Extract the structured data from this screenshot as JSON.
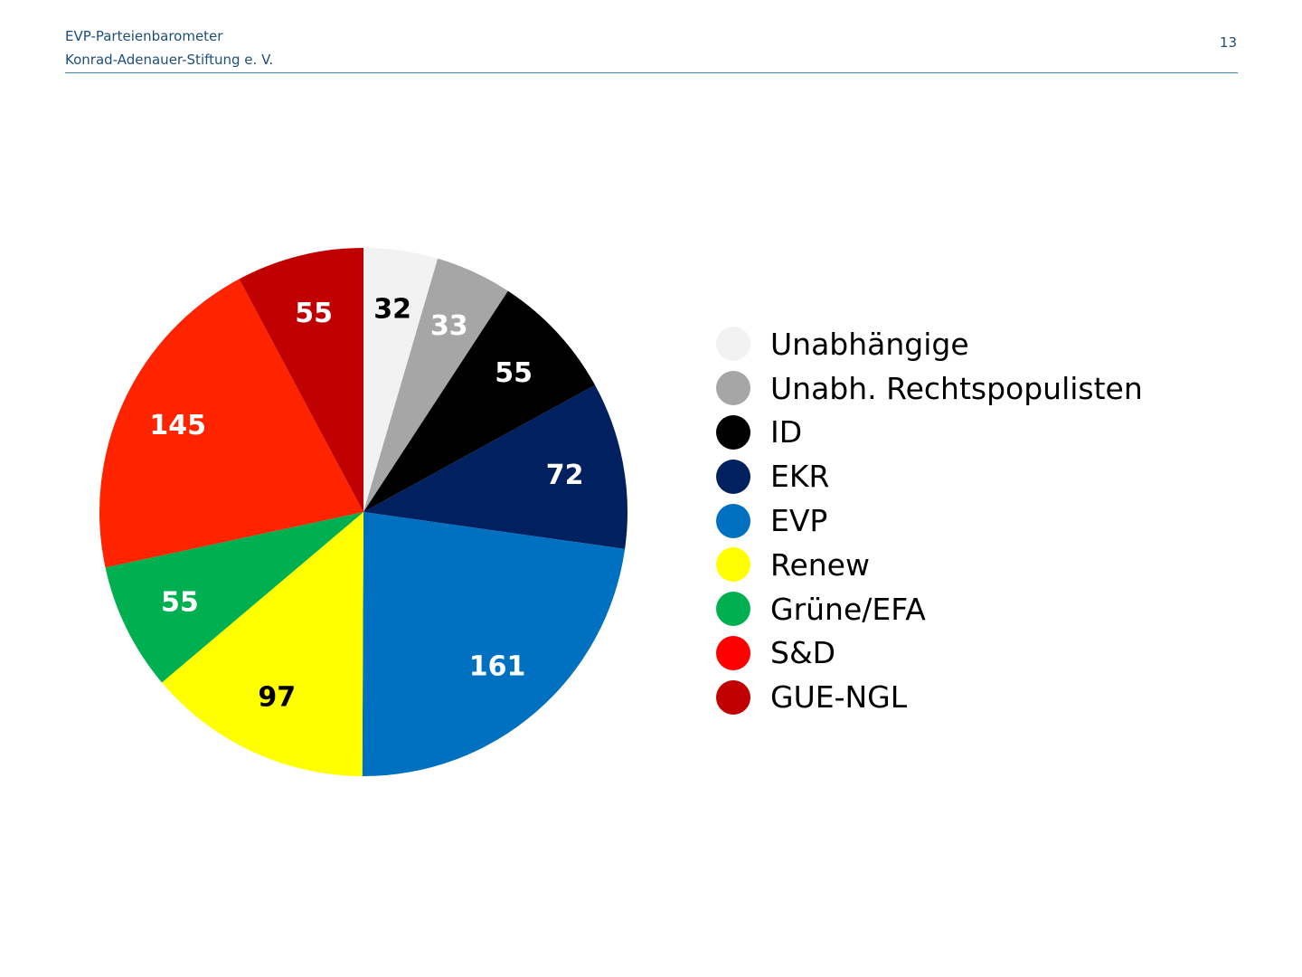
{
  "header": {
    "line1": "EVP-Parteienbarometer",
    "line2": "Konrad-Adenauer-Stiftung e. V.",
    "page_number": "13"
  },
  "chart_data": {
    "type": "pie",
    "start": "12 o'clock, clockwise",
    "legend_position": "right",
    "slices": [
      {
        "label": "Unabhängige",
        "value": 32,
        "color": "#f2f2f2",
        "label_color": "#000000"
      },
      {
        "label": "Unabh. Rechtspopulisten",
        "value": 33,
        "color": "#a6a6a6",
        "label_color": "#ffffff"
      },
      {
        "label": "ID",
        "value": 55,
        "color": "#000000",
        "label_color": "#ffffff"
      },
      {
        "label": "EKR",
        "value": 72,
        "color": "#00205f",
        "label_color": "#ffffff"
      },
      {
        "label": "EVP",
        "value": 161,
        "color": "#0070c0",
        "label_color": "#ffffff"
      },
      {
        "label": "Renew",
        "value": 97,
        "color": "#ffff00",
        "label_color": "#000000"
      },
      {
        "label": "Grüne/EFA",
        "value": 55,
        "color": "#00b050",
        "label_color": "#ffffff"
      },
      {
        "label": "S&D",
        "value": 145,
        "color": "#ff2300",
        "label_color": "#ffffff"
      },
      {
        "label": "GUE-NGL",
        "value": 55,
        "color": "#c00000",
        "label_color": "#ffffff"
      }
    ],
    "legend": [
      {
        "label": "Unabhängige",
        "color": "#f2f2f2"
      },
      {
        "label": "Unabh. Rechtspopulisten",
        "color": "#a6a6a6"
      },
      {
        "label": "ID",
        "color": "#000000"
      },
      {
        "label": "EKR",
        "color": "#00205f"
      },
      {
        "label": "EVP",
        "color": "#0070c0"
      },
      {
        "label": "Renew",
        "color": "#ffff00"
      },
      {
        "label": "Grüne/EFA",
        "color": "#00b050"
      },
      {
        "label": "S&D",
        "color": "#ff0000"
      },
      {
        "label": "GUE-NGL",
        "color": "#c00000"
      }
    ]
  }
}
